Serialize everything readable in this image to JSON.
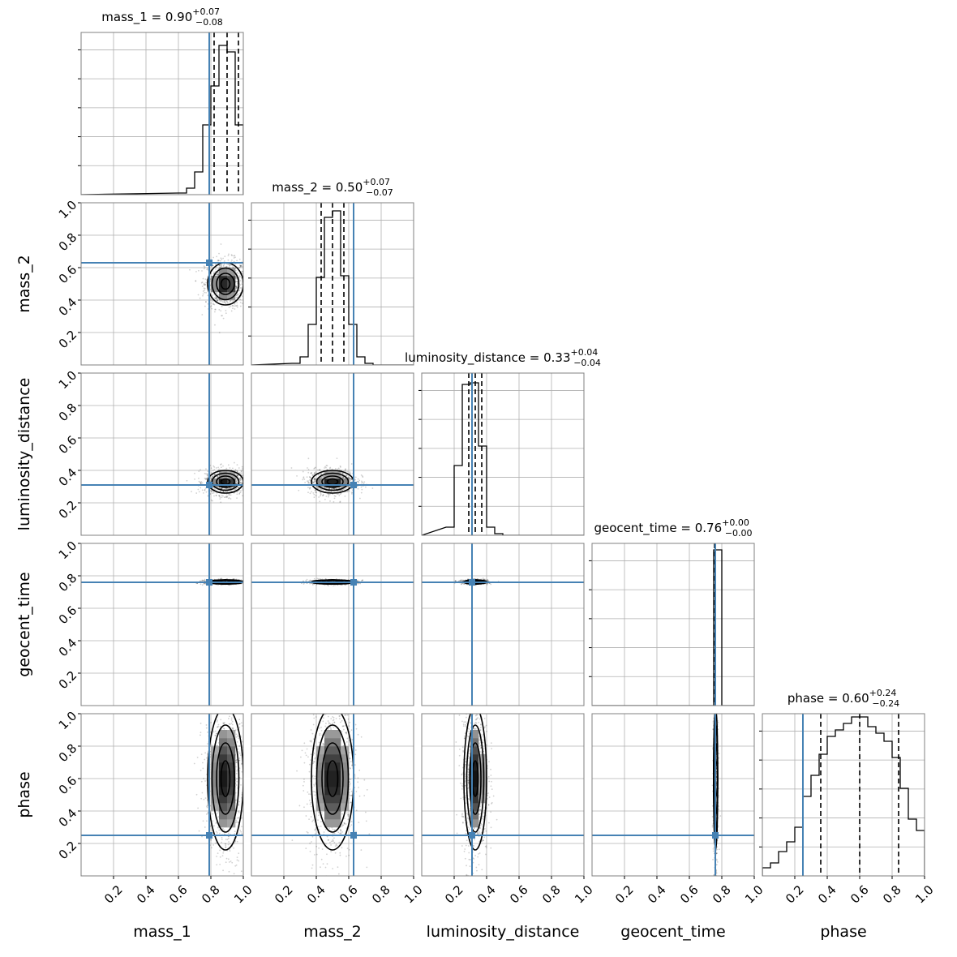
{
  "chart_data": {
    "type": "corner",
    "parameters": [
      "mass_1",
      "mass_2",
      "luminosity_distance",
      "geocent_time",
      "phase"
    ],
    "range": [
      0.0,
      1.0
    ],
    "tick_values": [
      0.2,
      0.4,
      0.6,
      0.8,
      1.0
    ],
    "tick_labels": [
      "0.2",
      "0.4",
      "0.6",
      "0.8",
      "1.0"
    ],
    "grid": true,
    "colors": {
      "truth": "#4682b4",
      "hist": "#000000",
      "grid": "#b0b0b0",
      "frame": "#808080"
    },
    "truths": {
      "mass_1": 0.79,
      "mass_2": 0.63,
      "luminosity_distance": 0.31,
      "geocent_time": 0.76,
      "phase": 0.25
    },
    "titles": [
      {
        "param": "mass_1",
        "label": "mass_1 = 0.90",
        "plus": "+0.07",
        "minus": "−0.08"
      },
      {
        "param": "mass_2",
        "label": "mass_2 = 0.50",
        "plus": "+0.07",
        "minus": "−0.07"
      },
      {
        "param": "luminosity_distance",
        "label": "luminosity_distance = 0.33",
        "plus": "+0.04",
        "minus": "−0.04"
      },
      {
        "param": "geocent_time",
        "label": "geocent_time = 0.76",
        "plus": "+0.00",
        "minus": "−0.00"
      },
      {
        "param": "phase",
        "label": "phase = 0.60",
        "plus": "+0.24",
        "minus": "−0.24"
      }
    ],
    "quantiles": {
      "mass_1": [
        0.82,
        0.9,
        0.97
      ],
      "mass_2": [
        0.43,
        0.5,
        0.57
      ],
      "luminosity_distance": [
        0.29,
        0.33,
        0.37
      ],
      "geocent_time": [
        0.755,
        0.758,
        0.761
      ],
      "phase": [
        0.36,
        0.6,
        0.84
      ]
    },
    "histograms": {
      "mass_1": {
        "bin_edges": [
          0.6,
          0.65,
          0.7,
          0.75,
          0.8,
          0.85,
          0.9,
          0.95,
          1.0
        ],
        "counts": [
          0.01,
          0.04,
          0.14,
          0.43,
          0.67,
          0.92,
          0.88,
          0.43
        ]
      },
      "mass_2": {
        "bin_edges": [
          0.25,
          0.3,
          0.35,
          0.4,
          0.45,
          0.5,
          0.55,
          0.6,
          0.65,
          0.7,
          0.75
        ],
        "counts": [
          0.01,
          0.05,
          0.25,
          0.54,
          0.91,
          0.95,
          0.55,
          0.25,
          0.05,
          0.01
        ]
      },
      "luminosity_distance": {
        "bin_edges": [
          0.15,
          0.2,
          0.25,
          0.3,
          0.35,
          0.4,
          0.45,
          0.5
        ],
        "counts": [
          0.05,
          0.43,
          0.93,
          0.94,
          0.55,
          0.05,
          0.01
        ]
      },
      "geocent_time": {
        "bin_edges": [
          0.7,
          0.75,
          0.8
        ],
        "counts": [
          0.0,
          0.96
        ]
      },
      "phase": {
        "bin_edges": [
          0.0,
          0.05,
          0.1,
          0.15,
          0.2,
          0.25,
          0.3,
          0.35,
          0.4,
          0.45,
          0.5,
          0.55,
          0.6,
          0.65,
          0.7,
          0.75,
          0.8,
          0.85,
          0.9,
          0.95,
          1.0
        ],
        "counts": [
          0.05,
          0.08,
          0.15,
          0.21,
          0.3,
          0.49,
          0.62,
          0.75,
          0.86,
          0.9,
          0.94,
          0.98,
          0.98,
          0.92,
          0.88,
          0.83,
          0.73,
          0.54,
          0.35,
          0.28
        ]
      }
    },
    "posterior_2d": {
      "mass_1": {
        "mean": 0.89,
        "sd": 0.055
      },
      "mass_2": {
        "mean": 0.5,
        "sd": 0.065
      },
      "luminosity_distance": {
        "mean": 0.33,
        "sd": 0.035
      },
      "geocent_time": {
        "mean": 0.762,
        "sd": 0.006
      },
      "phase": {
        "mean": 0.6,
        "sd": 0.22
      }
    },
    "contour_levels_sigma": [
      0.5,
      1.0,
      1.5,
      2.0
    ]
  }
}
